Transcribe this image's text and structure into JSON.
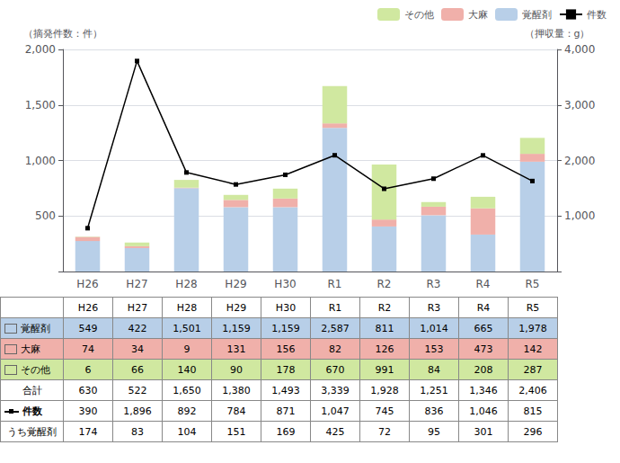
{
  "chart_data": {
    "type": "bar",
    "categories": [
      "H26",
      "H27",
      "H28",
      "H29",
      "H30",
      "R1",
      "R2",
      "R3",
      "R4",
      "R5"
    ],
    "ylabel": "（摘発件数：件）",
    "y2label": "（押収量：g）",
    "ylim": [
      0,
      2000
    ],
    "yticks": [
      500,
      {
        "value": 1000,
        "label": "1,000"
      },
      {
        "value": 1500,
        "label": "1,500"
      },
      {
        "value": 2000,
        "label": "2,000"
      }
    ],
    "y2lim": [
      0,
      4000
    ],
    "y2ticks": [
      {
        "value": 1000,
        "label": "1,000"
      },
      {
        "value": 2000,
        "label": "2,000"
      },
      {
        "value": 3000,
        "label": "3,000"
      },
      {
        "value": 4000,
        "label": "4,000"
      }
    ],
    "stacked": true,
    "grid": true,
    "legend": "upper right",
    "series": [
      {
        "name": "覚醒剤",
        "type": "bar",
        "axis": "y2",
        "color": "#b8cfe8",
        "values": [
          549,
          422,
          1501,
          1159,
          1159,
          2587,
          811,
          1014,
          665,
          1978
        ]
      },
      {
        "name": "大麻",
        "type": "bar",
        "axis": "y2",
        "color": "#f0b0aa",
        "values": [
          74,
          34,
          9,
          131,
          156,
          82,
          126,
          153,
          473,
          142
        ]
      },
      {
        "name": "その他",
        "type": "bar",
        "axis": "y2",
        "color": "#d0e8a0",
        "values": [
          6,
          66,
          140,
          90,
          178,
          670,
          991,
          84,
          208,
          287
        ]
      },
      {
        "name": "件数",
        "type": "line",
        "axis": "y",
        "color": "#000000",
        "marker": "square",
        "values": [
          390,
          1896,
          892,
          784,
          871,
          1047,
          745,
          836,
          1046,
          815
        ]
      }
    ],
    "table": {
      "rows": [
        {
          "name": "覚醒剤",
          "values": [
            549,
            422,
            1501,
            1159,
            1159,
            2587,
            811,
            1014,
            665,
            1978
          ],
          "value_labels": [
            "549",
            "422",
            "1,501",
            "1,159",
            "1,159",
            "2,587",
            "811",
            "1,014",
            "665",
            "1,978"
          ]
        },
        {
          "name": "大麻",
          "values": [
            74,
            34,
            9,
            131,
            156,
            82,
            126,
            153,
            473,
            142
          ],
          "value_labels": [
            "74",
            "34",
            "9",
            "131",
            "156",
            "82",
            "126",
            "153",
            "473",
            "142"
          ]
        },
        {
          "name": "その他",
          "values": [
            6,
            66,
            140,
            90,
            178,
            670,
            991,
            84,
            208,
            287
          ],
          "value_labels": [
            "6",
            "66",
            "140",
            "90",
            "178",
            "670",
            "991",
            "84",
            "208",
            "287"
          ]
        },
        {
          "name": "合計",
          "values": [
            630,
            522,
            1650,
            1380,
            1493,
            3339,
            1928,
            1251,
            1346,
            2406
          ],
          "value_labels": [
            "630",
            "522",
            "1,650",
            "1,380",
            "1,493",
            "3,339",
            "1,928",
            "1,251",
            "1,346",
            "2,406"
          ]
        },
        {
          "name": "件数",
          "values": [
            390,
            1896,
            892,
            784,
            871,
            1047,
            745,
            836,
            1046,
            815
          ],
          "value_labels": [
            "390",
            "1,896",
            "892",
            "784",
            "871",
            "1,047",
            "745",
            "836",
            "1,046",
            "815"
          ]
        },
        {
          "name": "うち覚醒剤",
          "values": [
            174,
            83,
            104,
            151,
            169,
            425,
            72,
            95,
            301,
            296
          ],
          "value_labels": [
            "174",
            "83",
            "104",
            "151",
            "169",
            "425",
            "72",
            "95",
            "301",
            "296"
          ]
        }
      ]
    }
  }
}
